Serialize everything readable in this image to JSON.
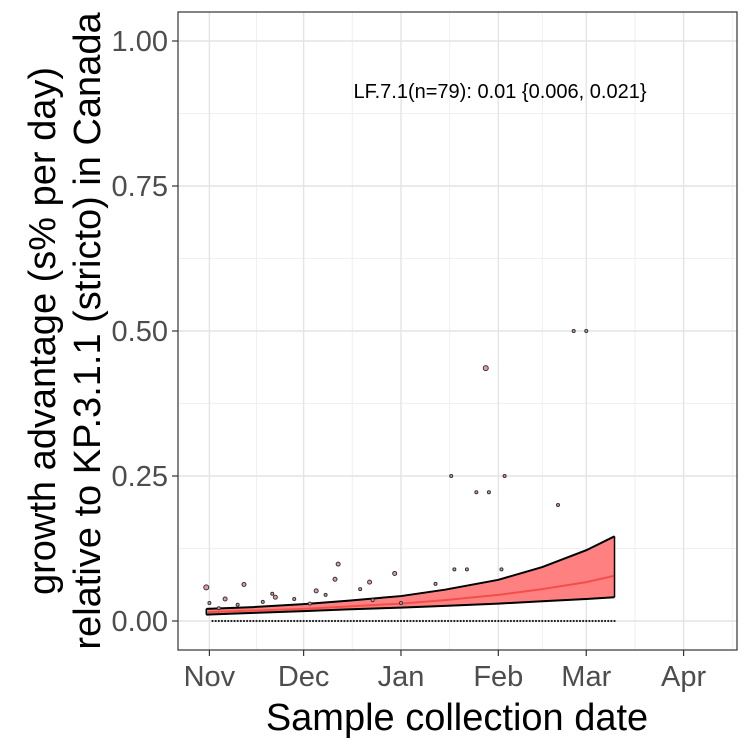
{
  "chart_data": {
    "type": "scatter",
    "title": "",
    "annotation": "LF.7.1(n=79): 0.01 {0.006, 0.021}",
    "xlabel": "Sample collection date",
    "ylabel_line1": "growth advantage (s% per day)",
    "ylabel_line2": "relative to KP.3.1.1 (stricto) in Canada",
    "x_ticks": [
      {
        "date": "2024-11-01",
        "label": "Nov"
      },
      {
        "date": "2024-12-01",
        "label": "Dec"
      },
      {
        "date": "2025-01-01",
        "label": "Jan"
      },
      {
        "date": "2025-02-01",
        "label": "Feb"
      },
      {
        "date": "2025-03-01",
        "label": "Mar"
      },
      {
        "date": "2025-04-01",
        "label": "Apr"
      }
    ],
    "y_ticks": [
      {
        "value": 0.0,
        "label": "0.00"
      },
      {
        "value": 0.25,
        "label": "0.25"
      },
      {
        "value": 0.5,
        "label": "0.50"
      },
      {
        "value": 0.75,
        "label": "0.75"
      },
      {
        "value": 1.0,
        "label": "1.00"
      }
    ],
    "xlim": [
      "2024-10-22",
      "2025-04-18"
    ],
    "ylim": [
      -0.05,
      1.05
    ],
    "grid": true,
    "colors": {
      "ribbon": "#ff8080",
      "fit_line": "#f0504a",
      "bounds": "#000000",
      "point_fill": "#e89aa8",
      "point_stroke": "#333333"
    },
    "points": [
      {
        "date": "2024-10-31",
        "y": 0.058,
        "size": 2.5
      },
      {
        "date": "2024-11-01",
        "y": 0.031,
        "size": 1.5
      },
      {
        "date": "2024-11-04",
        "y": 0.022,
        "size": 1.5
      },
      {
        "date": "2024-11-06",
        "y": 0.038,
        "size": 2.0
      },
      {
        "date": "2024-11-10",
        "y": 0.028,
        "size": 1.5
      },
      {
        "date": "2024-11-12",
        "y": 0.063,
        "size": 2.0
      },
      {
        "date": "2024-11-18",
        "y": 0.033,
        "size": 1.5
      },
      {
        "date": "2024-11-21",
        "y": 0.047,
        "size": 1.5
      },
      {
        "date": "2024-11-22",
        "y": 0.041,
        "size": 2.0
      },
      {
        "date": "2024-11-28",
        "y": 0.038,
        "size": 1.5
      },
      {
        "date": "2024-12-03",
        "y": 0.03,
        "size": 1.5
      },
      {
        "date": "2024-12-05",
        "y": 0.052,
        "size": 2.0
      },
      {
        "date": "2024-12-08",
        "y": 0.045,
        "size": 1.5
      },
      {
        "date": "2024-12-11",
        "y": 0.072,
        "size": 2.0
      },
      {
        "date": "2024-12-12",
        "y": 0.098,
        "size": 2.0
      },
      {
        "date": "2024-12-19",
        "y": 0.055,
        "size": 1.5
      },
      {
        "date": "2024-12-22",
        "y": 0.067,
        "size": 2.0
      },
      {
        "date": "2024-12-23",
        "y": 0.036,
        "size": 1.5
      },
      {
        "date": "2024-12-30",
        "y": 0.082,
        "size": 2.0
      },
      {
        "date": "2025-01-01",
        "y": 0.031,
        "size": 1.5
      },
      {
        "date": "2025-01-12",
        "y": 0.064,
        "size": 1.5
      },
      {
        "date": "2025-01-17",
        "y": 0.25,
        "size": 1.5
      },
      {
        "date": "2025-01-18",
        "y": 0.089,
        "size": 1.5
      },
      {
        "date": "2025-01-22",
        "y": 0.089,
        "size": 1.5
      },
      {
        "date": "2025-01-25",
        "y": 0.222,
        "size": 1.5
      },
      {
        "date": "2025-01-28",
        "y": 0.436,
        "size": 2.5
      },
      {
        "date": "2025-01-29",
        "y": 0.222,
        "size": 1.5
      },
      {
        "date": "2025-02-02",
        "y": 0.089,
        "size": 1.5
      },
      {
        "date": "2025-02-03",
        "y": 0.25,
        "size": 1.5
      },
      {
        "date": "2025-02-20",
        "y": 0.2,
        "size": 1.5
      },
      {
        "date": "2025-02-25",
        "y": 0.5,
        "size": 1.5
      },
      {
        "date": "2025-03-01",
        "y": 0.5,
        "size": 1.5
      }
    ],
    "zero_points": {
      "start": "2024-11-02",
      "end": "2025-03-10",
      "y": 0.0
    },
    "fit": {
      "start": "2024-10-31",
      "end": "2025-03-10",
      "x": [
        "2024-10-31",
        "2024-11-15",
        "2024-12-01",
        "2024-12-15",
        "2025-01-01",
        "2025-01-15",
        "2025-02-01",
        "2025-02-15",
        "2025-03-01",
        "2025-03-10"
      ],
      "mid": [
        0.015,
        0.018,
        0.021,
        0.025,
        0.03,
        0.036,
        0.045,
        0.055,
        0.067,
        0.078
      ],
      "lower": [
        0.011,
        0.014,
        0.017,
        0.02,
        0.023,
        0.026,
        0.03,
        0.034,
        0.038,
        0.041
      ],
      "upper": [
        0.021,
        0.024,
        0.029,
        0.035,
        0.043,
        0.054,
        0.071,
        0.093,
        0.122,
        0.146
      ]
    }
  }
}
